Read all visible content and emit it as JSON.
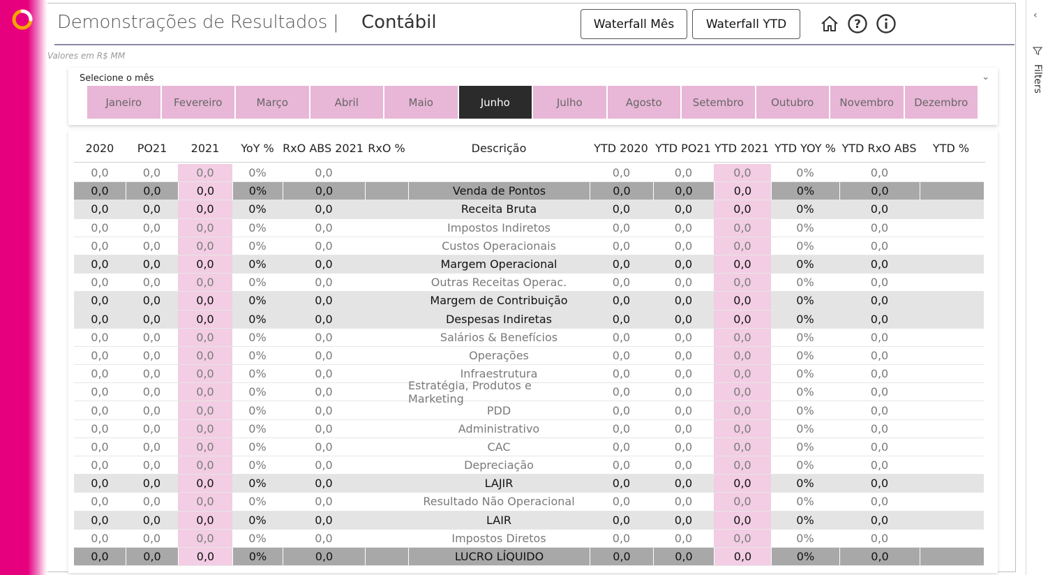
{
  "header": {
    "title": "Demonstrações de Resultados |",
    "subtitle": "Contábil",
    "units": "Valores em R$ MM",
    "buttons": {
      "waterfall_month": "Waterfall Mês",
      "waterfall_ytd": "Waterfall YTD"
    },
    "icons": [
      "home-icon",
      "help-icon",
      "info-icon"
    ]
  },
  "slicer": {
    "label": "Selecione o mês",
    "months": [
      "Janeiro",
      "Fevereiro",
      "Março",
      "Abril",
      "Maio",
      "Junho",
      "Julho",
      "Agosto",
      "Setembro",
      "Outubro",
      "Novembro",
      "Dezembro"
    ],
    "selected": "Junho"
  },
  "table": {
    "columns": [
      "2020",
      "PO21",
      "2021",
      "YoY %",
      "RxO ABS 2021",
      "RxO %",
      "Descrição",
      "YTD 2020",
      "YTD PO21",
      "YTD 2021",
      "YTD YOY %",
      "YTD RxO ABS",
      "YTD %"
    ],
    "rows": [
      {
        "desc": "",
        "style": "normal",
        "values": [
          "0,0",
          "0,0",
          "0,0",
          "0%",
          "0,0",
          "",
          "0,0",
          "0,0",
          "0,0",
          "0%",
          "0,0",
          ""
        ]
      },
      {
        "desc": "Venda de Pontos",
        "style": "dark",
        "values": [
          "0,0",
          "0,0",
          "0,0",
          "0%",
          "0,0",
          "",
          "0,0",
          "0,0",
          "0,0",
          "0%",
          "0,0",
          ""
        ]
      },
      {
        "desc": "Receita Bruta",
        "style": "bold",
        "values": [
          "0,0",
          "0,0",
          "0,0",
          "0%",
          "0,0",
          "",
          "0,0",
          "0,0",
          "0,0",
          "0%",
          "0,0",
          ""
        ]
      },
      {
        "desc": "Impostos Indiretos",
        "style": "normal",
        "values": [
          "0,0",
          "0,0",
          "0,0",
          "0%",
          "0,0",
          "",
          "0,0",
          "0,0",
          "0,0",
          "0%",
          "0,0",
          ""
        ]
      },
      {
        "desc": "Custos Operacionais",
        "style": "normal",
        "values": [
          "0,0",
          "0,0",
          "0,0",
          "0%",
          "0,0",
          "",
          "0,0",
          "0,0",
          "0,0",
          "0%",
          "0,0",
          ""
        ]
      },
      {
        "desc": "Margem Operacional",
        "style": "bold",
        "values": [
          "0,0",
          "0,0",
          "0,0",
          "0%",
          "0,0",
          "",
          "0,0",
          "0,0",
          "0,0",
          "0%",
          "0,0",
          ""
        ]
      },
      {
        "desc": "Outras Receitas Operac.",
        "style": "normal",
        "values": [
          "0,0",
          "0,0",
          "0,0",
          "0%",
          "0,0",
          "",
          "0,0",
          "0,0",
          "0,0",
          "0%",
          "0,0",
          ""
        ]
      },
      {
        "desc": "Margem de Contribuição",
        "style": "bold",
        "values": [
          "0,0",
          "0,0",
          "0,0",
          "0%",
          "0,0",
          "",
          "0,0",
          "0,0",
          "0,0",
          "0%",
          "0,0",
          ""
        ]
      },
      {
        "desc": "Despesas Indiretas",
        "style": "bold",
        "values": [
          "0,0",
          "0,0",
          "0,0",
          "0%",
          "0,0",
          "",
          "0,0",
          "0,0",
          "0,0",
          "0%",
          "0,0",
          ""
        ]
      },
      {
        "desc": "Salários & Benefícios",
        "style": "normal",
        "values": [
          "0,0",
          "0,0",
          "0,0",
          "0%",
          "0,0",
          "",
          "0,0",
          "0,0",
          "0,0",
          "0%",
          "0,0",
          ""
        ]
      },
      {
        "desc": "Operações",
        "style": "normal",
        "values": [
          "0,0",
          "0,0",
          "0,0",
          "0%",
          "0,0",
          "",
          "0,0",
          "0,0",
          "0,0",
          "0%",
          "0,0",
          ""
        ]
      },
      {
        "desc": "Infraestrutura",
        "style": "normal",
        "values": [
          "0,0",
          "0,0",
          "0,0",
          "0%",
          "0,0",
          "",
          "0,0",
          "0,0",
          "0,0",
          "0%",
          "0,0",
          ""
        ]
      },
      {
        "desc": "Estratégia, Produtos e Marketing",
        "style": "normal",
        "values": [
          "0,0",
          "0,0",
          "0,0",
          "0%",
          "0,0",
          "",
          "0,0",
          "0,0",
          "0,0",
          "0%",
          "0,0",
          ""
        ]
      },
      {
        "desc": "PDD",
        "style": "normal",
        "values": [
          "0,0",
          "0,0",
          "0,0",
          "0%",
          "0,0",
          "",
          "0,0",
          "0,0",
          "0,0",
          "0%",
          "0,0",
          ""
        ]
      },
      {
        "desc": "Administrativo",
        "style": "normal",
        "values": [
          "0,0",
          "0,0",
          "0,0",
          "0%",
          "0,0",
          "",
          "0,0",
          "0,0",
          "0,0",
          "0%",
          "0,0",
          ""
        ]
      },
      {
        "desc": "CAC",
        "style": "normal",
        "values": [
          "0,0",
          "0,0",
          "0,0",
          "0%",
          "0,0",
          "",
          "0,0",
          "0,0",
          "0,0",
          "0%",
          "0,0",
          ""
        ]
      },
      {
        "desc": "Depreciação",
        "style": "normal",
        "values": [
          "0,0",
          "0,0",
          "0,0",
          "0%",
          "0,0",
          "",
          "0,0",
          "0,0",
          "0,0",
          "0%",
          "0,0",
          ""
        ]
      },
      {
        "desc": "LAJIR",
        "style": "bold",
        "values": [
          "0,0",
          "0,0",
          "0,0",
          "0%",
          "0,0",
          "",
          "0,0",
          "0,0",
          "0,0",
          "0%",
          "0,0",
          ""
        ]
      },
      {
        "desc": "Resultado Não Operacional",
        "style": "normal",
        "values": [
          "0,0",
          "0,0",
          "0,0",
          "0%",
          "0,0",
          "",
          "0,0",
          "0,0",
          "0,0",
          "0%",
          "0,0",
          ""
        ]
      },
      {
        "desc": "LAIR",
        "style": "bold",
        "values": [
          "0,0",
          "0,0",
          "0,0",
          "0%",
          "0,0",
          "",
          "0,0",
          "0,0",
          "0,0",
          "0%",
          "0,0",
          ""
        ]
      },
      {
        "desc": "Impostos Diretos",
        "style": "normal",
        "values": [
          "0,0",
          "0,0",
          "0,0",
          "0%",
          "0,0",
          "",
          "0,0",
          "0,0",
          "0,0",
          "0%",
          "0,0",
          ""
        ]
      },
      {
        "desc": "LUCRO LÍQUIDO",
        "style": "dark",
        "values": [
          "0,0",
          "0,0",
          "0,0",
          "0%",
          "0,0",
          "",
          "0,0",
          "0,0",
          "0,0",
          "0%",
          "0,0",
          ""
        ]
      }
    ]
  },
  "filters_pane": {
    "label": "Filters"
  },
  "colors": {
    "brand_pink": "#e6007e",
    "month_bg": "#e8b6d6",
    "highlight_col": "#f2cde3",
    "selected_month": "#2b2b2b"
  }
}
